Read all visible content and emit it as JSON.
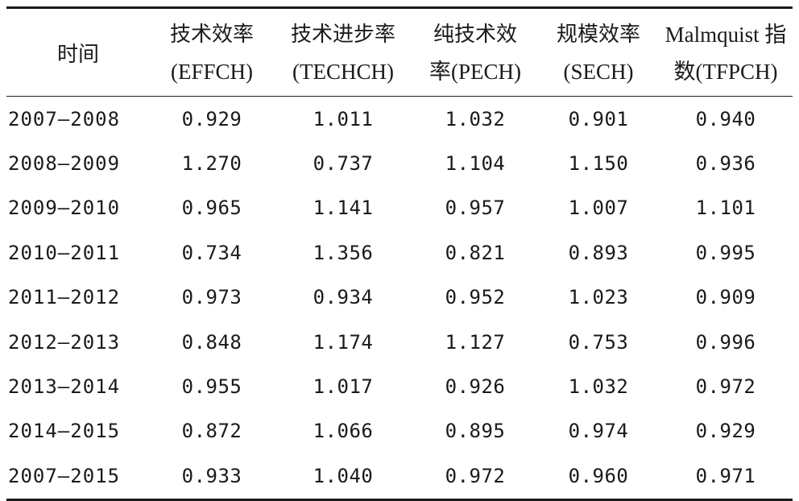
{
  "table": {
    "header_row1": {
      "time": "时间",
      "effch_line1": "技术效率",
      "techch_line1": "技术进步率",
      "pech_line1": "纯技术效",
      "sech_line1": "规模效率",
      "tfpch_line1": "Malmquist 指"
    },
    "header_row2": {
      "effch_line2": "(EFFCH)",
      "techch_line2": "(TECHCH)",
      "pech_line2": "率(PECH)",
      "sech_line2": "(SECH)",
      "tfpch_line2": "数(TFPCH)"
    },
    "rows": [
      {
        "period": "2007—2008",
        "effch": "0.929",
        "techch": "1.011",
        "pech": "1.032",
        "sech": "0.901",
        "tfpch": "0.940"
      },
      {
        "period": "2008—2009",
        "effch": "1.270",
        "techch": "0.737",
        "pech": "1.104",
        "sech": "1.150",
        "tfpch": "0.936"
      },
      {
        "period": "2009—2010",
        "effch": "0.965",
        "techch": "1.141",
        "pech": "0.957",
        "sech": "1.007",
        "tfpch": "1.101"
      },
      {
        "period": "2010—2011",
        "effch": "0.734",
        "techch": "1.356",
        "pech": "0.821",
        "sech": "0.893",
        "tfpch": "0.995"
      },
      {
        "period": "2011—2012",
        "effch": "0.973",
        "techch": "0.934",
        "pech": "0.952",
        "sech": "1.023",
        "tfpch": "0.909"
      },
      {
        "period": "2012—2013",
        "effch": "0.848",
        "techch": "1.174",
        "pech": "1.127",
        "sech": "0.753",
        "tfpch": "0.996"
      },
      {
        "period": "2013—2014",
        "effch": "0.955",
        "techch": "1.017",
        "pech": "0.926",
        "sech": "1.032",
        "tfpch": "0.972"
      },
      {
        "period": "2014—2015",
        "effch": "0.872",
        "techch": "1.066",
        "pech": "0.895",
        "sech": "0.974",
        "tfpch": "0.929"
      },
      {
        "period": "2007—2015",
        "effch": "0.933",
        "techch": "1.040",
        "pech": "0.972",
        "sech": "0.960",
        "tfpch": "0.971"
      }
    ]
  }
}
